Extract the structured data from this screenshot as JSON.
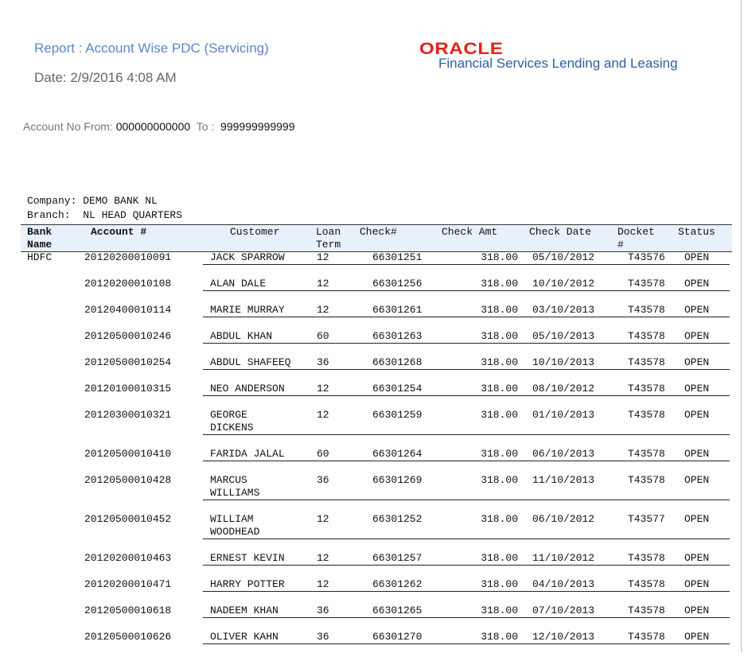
{
  "report": {
    "title": "Report : Account Wise PDC (Servicing)",
    "date": "Date: 2/9/2016  4:08 AM"
  },
  "logo": {
    "brand": "ORACLE",
    "product": "Financial Services Lending and Leasing",
    "brand_color": "#e4221b"
  },
  "filter": {
    "label": "Account No  From:",
    "from": "000000000000",
    "to_label": "To :",
    "to": "999999999999"
  },
  "company": {
    "label": "Company:",
    "value": "DEMO BANK NL"
  },
  "branch": {
    "label": "Branch:",
    "value": "NL HEAD QUARTERS"
  },
  "columns": {
    "bank_name": "Bank Name",
    "account": "Account #",
    "customer": "Customer",
    "loan_term": "Loan Term",
    "check_no": "Check#",
    "check_amt": "Check Amt",
    "check_date": "Check Date",
    "docket": "Docket #",
    "status": "Status"
  },
  "rows": [
    {
      "bank": "HDFC",
      "account": "20120200010091",
      "customer": "JACK SPARROW",
      "term": "12",
      "check": "66301251",
      "amt": "318.00",
      "date": "05/10/2012",
      "docket": "T43576",
      "status": "OPEN"
    },
    {
      "bank": "",
      "account": "20120200010108",
      "customer": "ALAN DALE",
      "term": "12",
      "check": "66301256",
      "amt": "318.00",
      "date": "10/10/2012",
      "docket": "T43578",
      "status": "OPEN"
    },
    {
      "bank": "",
      "account": "20120400010114",
      "customer": "MARIE MURRAY",
      "term": "12",
      "check": "66301261",
      "amt": "318.00",
      "date": "03/10/2013",
      "docket": "T43578",
      "status": "OPEN"
    },
    {
      "bank": "",
      "account": "20120500010246",
      "customer": "ABDUL KHAN",
      "term": "60",
      "check": "66301263",
      "amt": "318.00",
      "date": "05/10/2013",
      "docket": "T43578",
      "status": "OPEN"
    },
    {
      "bank": "",
      "account": "20120500010254",
      "customer": "ABDUL SHAFEEQ",
      "term": "36",
      "check": "66301268",
      "amt": "318.00",
      "date": "10/10/2013",
      "docket": "T43578",
      "status": "OPEN"
    },
    {
      "bank": "",
      "account": "20120100010315",
      "customer": "NEO ANDERSON",
      "term": "12",
      "check": "66301254",
      "amt": "318.00",
      "date": "08/10/2012",
      "docket": "T43578",
      "status": "OPEN"
    },
    {
      "bank": "",
      "account": "20120300010321",
      "customer": "GEORGE DICKENS",
      "term": "12",
      "check": "66301259",
      "amt": "318.00",
      "date": "01/10/2013",
      "docket": "T43578",
      "status": "OPEN"
    },
    {
      "bank": "",
      "account": "20120500010410",
      "customer": "FARIDA JALAL",
      "term": "60",
      "check": "66301264",
      "amt": "318.00",
      "date": "06/10/2013",
      "docket": "T43578",
      "status": "OPEN"
    },
    {
      "bank": "",
      "account": "20120500010428",
      "customer": "MARCUS WILLIAMS",
      "term": "36",
      "check": "66301269",
      "amt": "318.00",
      "date": "11/10/2013",
      "docket": "T43578",
      "status": "OPEN"
    },
    {
      "bank": "",
      "account": "20120500010452",
      "customer": "WILLIAM WOODHEAD",
      "term": "12",
      "check": "66301252",
      "amt": "318.00",
      "date": "06/10/2012",
      "docket": "T43577",
      "status": "OPEN"
    },
    {
      "bank": "",
      "account": "20120200010463",
      "customer": "ERNEST KEVIN",
      "term": "12",
      "check": "66301257",
      "amt": "318.00",
      "date": "11/10/2012",
      "docket": "T43578",
      "status": "OPEN"
    },
    {
      "bank": "",
      "account": "20120200010471",
      "customer": "HARRY POTTER",
      "term": "12",
      "check": "66301262",
      "amt": "318.00",
      "date": "04/10/2013",
      "docket": "T43578",
      "status": "OPEN"
    },
    {
      "bank": "",
      "account": "20120500010618",
      "customer": "NADEEM KHAN",
      "term": "36",
      "check": "66301265",
      "amt": "318.00",
      "date": "07/10/2013",
      "docket": "T43578",
      "status": "OPEN"
    },
    {
      "bank": "",
      "account": "20120500010626",
      "customer": "OLIVER KAHN",
      "term": "36",
      "check": "66301270",
      "amt": "318.00",
      "date": "12/10/2013",
      "docket": "T43578",
      "status": "OPEN"
    }
  ]
}
